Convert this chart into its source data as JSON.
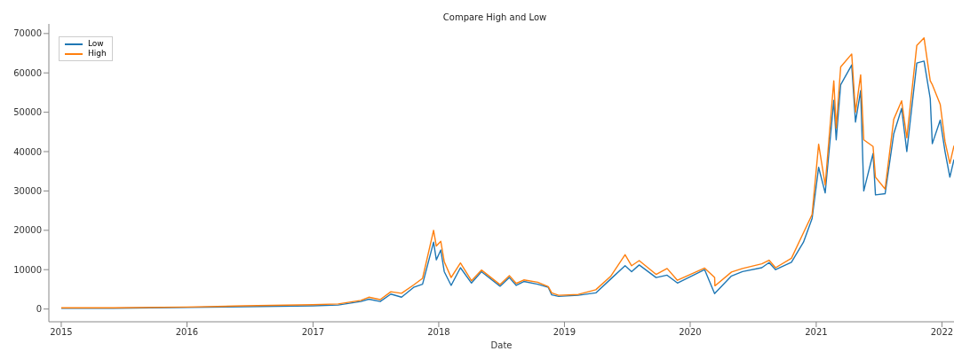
{
  "chart_data": {
    "type": "line",
    "title": "Compare High and Low",
    "xlabel": "Date",
    "x": [
      "2015-01-01",
      "2015-06-01",
      "2016-01-01",
      "2016-06-15",
      "2017-01-01",
      "2017-03-15",
      "2017-05-20",
      "2017-06-12",
      "2017-07-15",
      "2017-08-15",
      "2017-09-15",
      "2017-10-20",
      "2017-11-15",
      "2017-12-17",
      "2017-12-25",
      "2018-01-07",
      "2018-01-17",
      "2018-02-06",
      "2018-03-05",
      "2018-04-06",
      "2018-05-05",
      "2018-06-28",
      "2018-07-25",
      "2018-08-14",
      "2018-09-05",
      "2018-10-15",
      "2018-11-15",
      "2018-11-25",
      "2018-12-15",
      "2019-02-10",
      "2019-04-02",
      "2019-05-15",
      "2019-06-26",
      "2019-07-15",
      "2019-08-06",
      "2019-09-24",
      "2019-10-26",
      "2019-11-25",
      "2020-02-12",
      "2020-03-12",
      "2020-03-13",
      "2020-04-30",
      "2020-06-01",
      "2020-07-27",
      "2020-08-17",
      "2020-09-05",
      "2020-10-21",
      "2020-11-25",
      "2020-12-20",
      "2021-01-08",
      "2021-01-27",
      "2021-02-21",
      "2021-02-28",
      "2021-03-13",
      "2021-04-14",
      "2021-04-25",
      "2021-05-10",
      "2021-05-19",
      "2021-06-15",
      "2021-06-22",
      "2021-07-20",
      "2021-08-14",
      "2021-09-06",
      "2021-09-21",
      "2021-10-20",
      "2021-11-10",
      "2021-11-28",
      "2021-12-04",
      "2021-12-27",
      "2022-01-10",
      "2022-01-24",
      "2022-02-05"
    ],
    "series": [
      {
        "name": "Low",
        "color": "#1f77b4",
        "values": [
          200,
          200,
          400,
          600,
          800,
          1000,
          1900,
          2500,
          1900,
          3800,
          3000,
          5500,
          6300,
          17000,
          12500,
          15000,
          9500,
          6000,
          10500,
          6600,
          9500,
          5800,
          8000,
          6000,
          7000,
          6300,
          5500,
          3600,
          3200,
          3500,
          4100,
          7600,
          11000,
          9500,
          11200,
          8000,
          8600,
          6600,
          10000,
          3900,
          4000,
          8400,
          9500,
          10500,
          11800,
          10000,
          11900,
          17000,
          23000,
          36000,
          29500,
          53000,
          43000,
          57000,
          62000,
          47500,
          55500,
          30000,
          39500,
          29000,
          29300,
          44500,
          51000,
          40000,
          62500,
          63000,
          53500,
          42000,
          48000,
          40000,
          33500,
          38000
        ]
      },
      {
        "name": "High",
        "color": "#ff7f0e",
        "values": [
          300,
          300,
          500,
          800,
          1100,
          1300,
          2200,
          3000,
          2400,
          4400,
          4000,
          6100,
          7800,
          20000,
          16000,
          17200,
          12000,
          8000,
          11700,
          7200,
          9900,
          6200,
          8500,
          6500,
          7400,
          6800,
          5700,
          4100,
          3500,
          3700,
          4900,
          8300,
          13800,
          11000,
          12300,
          8800,
          10300,
          7300,
          10400,
          8000,
          5900,
          9400,
          10300,
          11500,
          12400,
          10500,
          12900,
          19400,
          24000,
          41900,
          31500,
          58000,
          46000,
          61500,
          64800,
          50000,
          59500,
          43000,
          41300,
          33500,
          30500,
          48200,
          52900,
          43500,
          67000,
          68900,
          58000,
          57000,
          52000,
          42500,
          37000,
          41500
        ]
      }
    ],
    "xlim": [
      "2014-11-26",
      "2022-02-05"
    ],
    "xticks": [
      {
        "value": "2015-01-01",
        "label": "2015"
      },
      {
        "value": "2016-01-01",
        "label": "2016"
      },
      {
        "value": "2017-01-01",
        "label": "2017"
      },
      {
        "value": "2018-01-01",
        "label": "2018"
      },
      {
        "value": "2019-01-01",
        "label": "2019"
      },
      {
        "value": "2020-01-01",
        "label": "2020"
      },
      {
        "value": "2021-01-01",
        "label": "2021"
      },
      {
        "value": "2022-01-01",
        "label": "2022"
      }
    ],
    "ylim": [
      -3240,
      72440
    ],
    "yticks": [
      0,
      10000,
      20000,
      30000,
      40000,
      50000,
      60000,
      70000
    ],
    "grid": false,
    "legend": "top left",
    "marker": "none",
    "line_style": "solid"
  }
}
